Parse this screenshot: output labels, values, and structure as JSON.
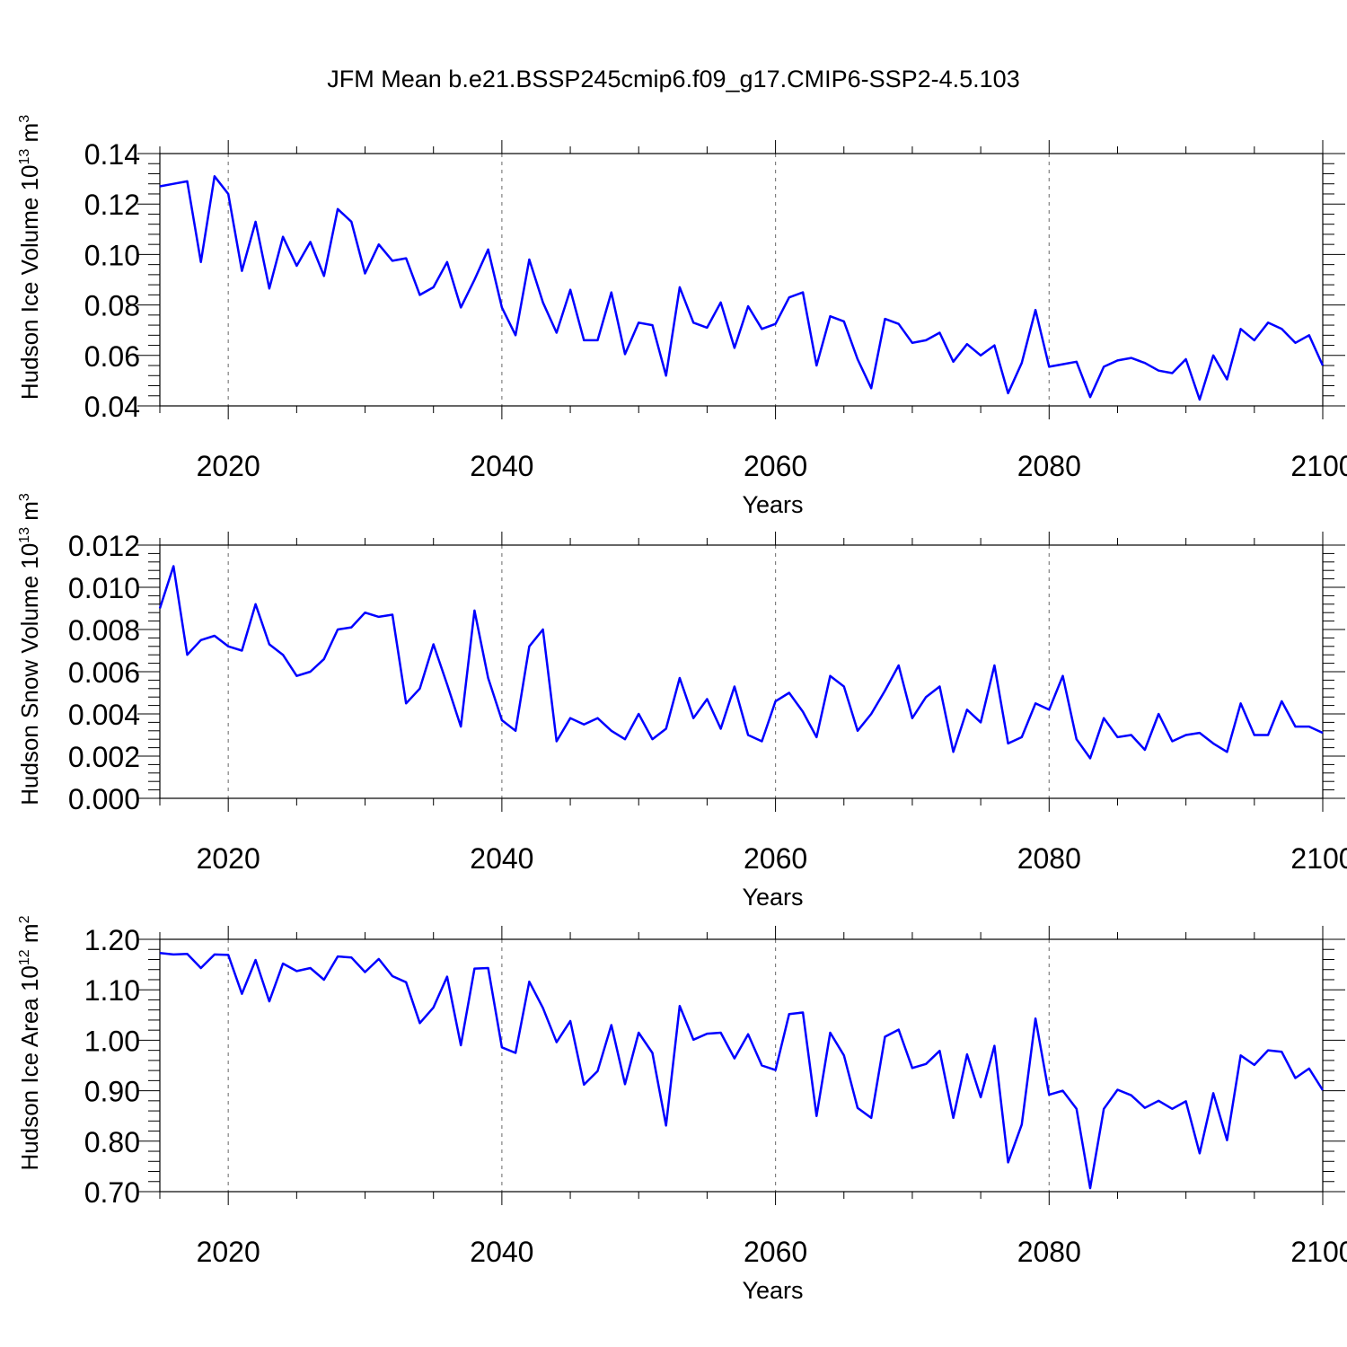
{
  "title": "JFM Mean b.e21.BSSP245cmip6.f09_g17.CMIP6-SSP2-4.5.103",
  "colors": {
    "line": "#0000ff",
    "axis": "#000000",
    "grid": "#808080"
  },
  "chart_data": [
    {
      "type": "line",
      "ylabel_main": "Hudson Ice Volume 10",
      "ylabel_exp": "13",
      "ylabel_unit": " m",
      "ylabel_unit_exp": "3",
      "xlabel": "Years",
      "xlim": [
        2015,
        2100
      ],
      "ylim": [
        0.04,
        0.14
      ],
      "xticks": [
        2020,
        2040,
        2060,
        2080,
        2100
      ],
      "yticks": [
        "0.04",
        "0.06",
        "0.08",
        "0.10",
        "0.12",
        "0.14"
      ],
      "grid_x": true,
      "series": [
        {
          "name": "Hudson Ice Volume",
          "x": [
            2015,
            2016,
            2017,
            2018,
            2019,
            2020,
            2021,
            2022,
            2023,
            2024,
            2025,
            2026,
            2027,
            2028,
            2029,
            2030,
            2031,
            2032,
            2033,
            2034,
            2035,
            2036,
            2037,
            2038,
            2039,
            2040,
            2041,
            2042,
            2043,
            2044,
            2045,
            2046,
            2047,
            2048,
            2049,
            2050,
            2051,
            2052,
            2053,
            2054,
            2055,
            2056,
            2057,
            2058,
            2059,
            2060,
            2061,
            2062,
            2063,
            2064,
            2065,
            2066,
            2067,
            2068,
            2069,
            2070,
            2071,
            2072,
            2073,
            2074,
            2075,
            2076,
            2077,
            2078,
            2079,
            2080,
            2081,
            2082,
            2083,
            2084,
            2085,
            2086,
            2087,
            2088,
            2089,
            2090,
            2091,
            2092,
            2093,
            2094,
            2095,
            2096,
            2097,
            2098,
            2099,
            2100
          ],
          "values": [
            0.127,
            0.128,
            0.129,
            0.097,
            0.131,
            0.124,
            0.0935,
            0.113,
            0.0865,
            0.107,
            0.0955,
            0.105,
            0.0915,
            0.118,
            0.113,
            0.0925,
            0.104,
            0.0975,
            0.0985,
            0.084,
            0.087,
            0.097,
            0.079,
            0.09,
            0.102,
            0.079,
            0.068,
            0.098,
            0.081,
            0.069,
            0.086,
            0.066,
            0.066,
            0.085,
            0.0605,
            0.073,
            0.072,
            0.052,
            0.087,
            0.073,
            0.071,
            0.081,
            0.063,
            0.0795,
            0.0705,
            0.0725,
            0.083,
            0.085,
            0.056,
            0.0755,
            0.0735,
            0.0585,
            0.047,
            0.0745,
            0.0725,
            0.065,
            0.066,
            0.069,
            0.0575,
            0.0645,
            0.06,
            0.064,
            0.045,
            0.057,
            0.078,
            0.0555,
            0.0565,
            0.0575,
            0.0435,
            0.0555,
            0.058,
            0.059,
            0.057,
            0.054,
            0.053,
            0.0585,
            0.0425,
            0.06,
            0.0505,
            0.0705,
            0.066,
            0.073,
            0.0705,
            0.065,
            0.068,
            0.056
          ]
        }
      ]
    },
    {
      "type": "line",
      "ylabel_main": "Hudson Snow Volume 10",
      "ylabel_exp": "13",
      "ylabel_unit": " m",
      "ylabel_unit_exp": "3",
      "xlabel": "Years",
      "xlim": [
        2015,
        2100
      ],
      "ylim": [
        0.0,
        0.012
      ],
      "xticks": [
        2020,
        2040,
        2060,
        2080,
        2100
      ],
      "yticks": [
        "0.000",
        "0.002",
        "0.004",
        "0.006",
        "0.008",
        "0.010",
        "0.012"
      ],
      "grid_x": true,
      "series": [
        {
          "name": "Hudson Snow Volume",
          "x": [
            2015,
            2016,
            2017,
            2018,
            2019,
            2020,
            2021,
            2022,
            2023,
            2024,
            2025,
            2026,
            2027,
            2028,
            2029,
            2030,
            2031,
            2032,
            2033,
            2034,
            2035,
            2036,
            2037,
            2038,
            2039,
            2040,
            2041,
            2042,
            2043,
            2044,
            2045,
            2046,
            2047,
            2048,
            2049,
            2050,
            2051,
            2052,
            2053,
            2054,
            2055,
            2056,
            2057,
            2058,
            2059,
            2060,
            2061,
            2062,
            2063,
            2064,
            2065,
            2066,
            2067,
            2068,
            2069,
            2070,
            2071,
            2072,
            2073,
            2074,
            2075,
            2076,
            2077,
            2078,
            2079,
            2080,
            2081,
            2082,
            2083,
            2084,
            2085,
            2086,
            2087,
            2088,
            2089,
            2090,
            2091,
            2092,
            2093,
            2094,
            2095,
            2096,
            2097,
            2098,
            2099,
            2100
          ],
          "values": [
            0.009,
            0.011,
            0.0068,
            0.0075,
            0.0077,
            0.0072,
            0.007,
            0.0092,
            0.0073,
            0.0068,
            0.0058,
            0.006,
            0.0066,
            0.008,
            0.0081,
            0.0088,
            0.0086,
            0.0087,
            0.0045,
            0.0052,
            0.0073,
            0.0054,
            0.0034,
            0.0089,
            0.0057,
            0.0037,
            0.0032,
            0.0072,
            0.008,
            0.0027,
            0.0038,
            0.0035,
            0.0038,
            0.0032,
            0.0028,
            0.004,
            0.0028,
            0.0033,
            0.0057,
            0.0038,
            0.0047,
            0.0033,
            0.0053,
            0.003,
            0.0027,
            0.0046,
            0.005,
            0.0041,
            0.0029,
            0.0058,
            0.0053,
            0.0032,
            0.004,
            0.0051,
            0.0063,
            0.0038,
            0.0048,
            0.0053,
            0.0022,
            0.0042,
            0.0036,
            0.0063,
            0.0026,
            0.0029,
            0.0045,
            0.0042,
            0.0058,
            0.0028,
            0.0019,
            0.0038,
            0.0029,
            0.003,
            0.0023,
            0.004,
            0.0027,
            0.003,
            0.0031,
            0.0026,
            0.0022,
            0.0045,
            0.003,
            0.003,
            0.0046,
            0.0034,
            0.0034,
            0.0031
          ]
        }
      ]
    },
    {
      "type": "line",
      "ylabel_main": "Hudson Ice Area 10",
      "ylabel_exp": "12",
      "ylabel_unit": " m",
      "ylabel_unit_exp": "2",
      "xlabel": "Years",
      "xlim": [
        2015,
        2100
      ],
      "ylim": [
        0.7,
        1.2
      ],
      "xticks": [
        2020,
        2040,
        2060,
        2080,
        2100
      ],
      "yticks": [
        "0.70",
        "0.80",
        "0.90",
        "1.00",
        "1.10",
        "1.20"
      ],
      "grid_x": true,
      "series": [
        {
          "name": "Hudson Ice Area",
          "x": [
            2015,
            2016,
            2017,
            2018,
            2019,
            2020,
            2021,
            2022,
            2023,
            2024,
            2025,
            2026,
            2027,
            2028,
            2029,
            2030,
            2031,
            2032,
            2033,
            2034,
            2035,
            2036,
            2037,
            2038,
            2039,
            2040,
            2041,
            2042,
            2043,
            2044,
            2045,
            2046,
            2047,
            2048,
            2049,
            2050,
            2051,
            2052,
            2053,
            2054,
            2055,
            2056,
            2057,
            2058,
            2059,
            2060,
            2061,
            2062,
            2063,
            2064,
            2065,
            2066,
            2067,
            2068,
            2069,
            2070,
            2071,
            2072,
            2073,
            2074,
            2075,
            2076,
            2077,
            2078,
            2079,
            2080,
            2081,
            2082,
            2083,
            2084,
            2085,
            2086,
            2087,
            2088,
            2089,
            2090,
            2091,
            2092,
            2093,
            2094,
            2095,
            2096,
            2097,
            2098,
            2099,
            2100
          ],
          "values": [
            1.173,
            1.17,
            1.171,
            1.143,
            1.17,
            1.169,
            1.092,
            1.159,
            1.077,
            1.152,
            1.137,
            1.143,
            1.12,
            1.166,
            1.164,
            1.135,
            1.161,
            1.127,
            1.115,
            1.034,
            1.065,
            1.126,
            0.99,
            1.142,
            1.143,
            0.986,
            0.975,
            1.116,
            1.064,
            0.996,
            1.038,
            0.912,
            0.939,
            1.03,
            0.913,
            1.015,
            0.975,
            0.831,
            1.068,
            1.001,
            1.013,
            1.015,
            0.964,
            1.012,
            0.95,
            0.941,
            1.052,
            1.055,
            0.85,
            1.015,
            0.97,
            0.866,
            0.846,
            1.007,
            1.021,
            0.945,
            0.953,
            0.979,
            0.846,
            0.972,
            0.887,
            0.989,
            0.758,
            0.833,
            1.043,
            0.892,
            0.9,
            0.864,
            0.707,
            0.864,
            0.902,
            0.891,
            0.866,
            0.88,
            0.864,
            0.879,
            0.776,
            0.895,
            0.802,
            0.97,
            0.951,
            0.98,
            0.977,
            0.925,
            0.944,
            0.901
          ]
        }
      ]
    }
  ]
}
